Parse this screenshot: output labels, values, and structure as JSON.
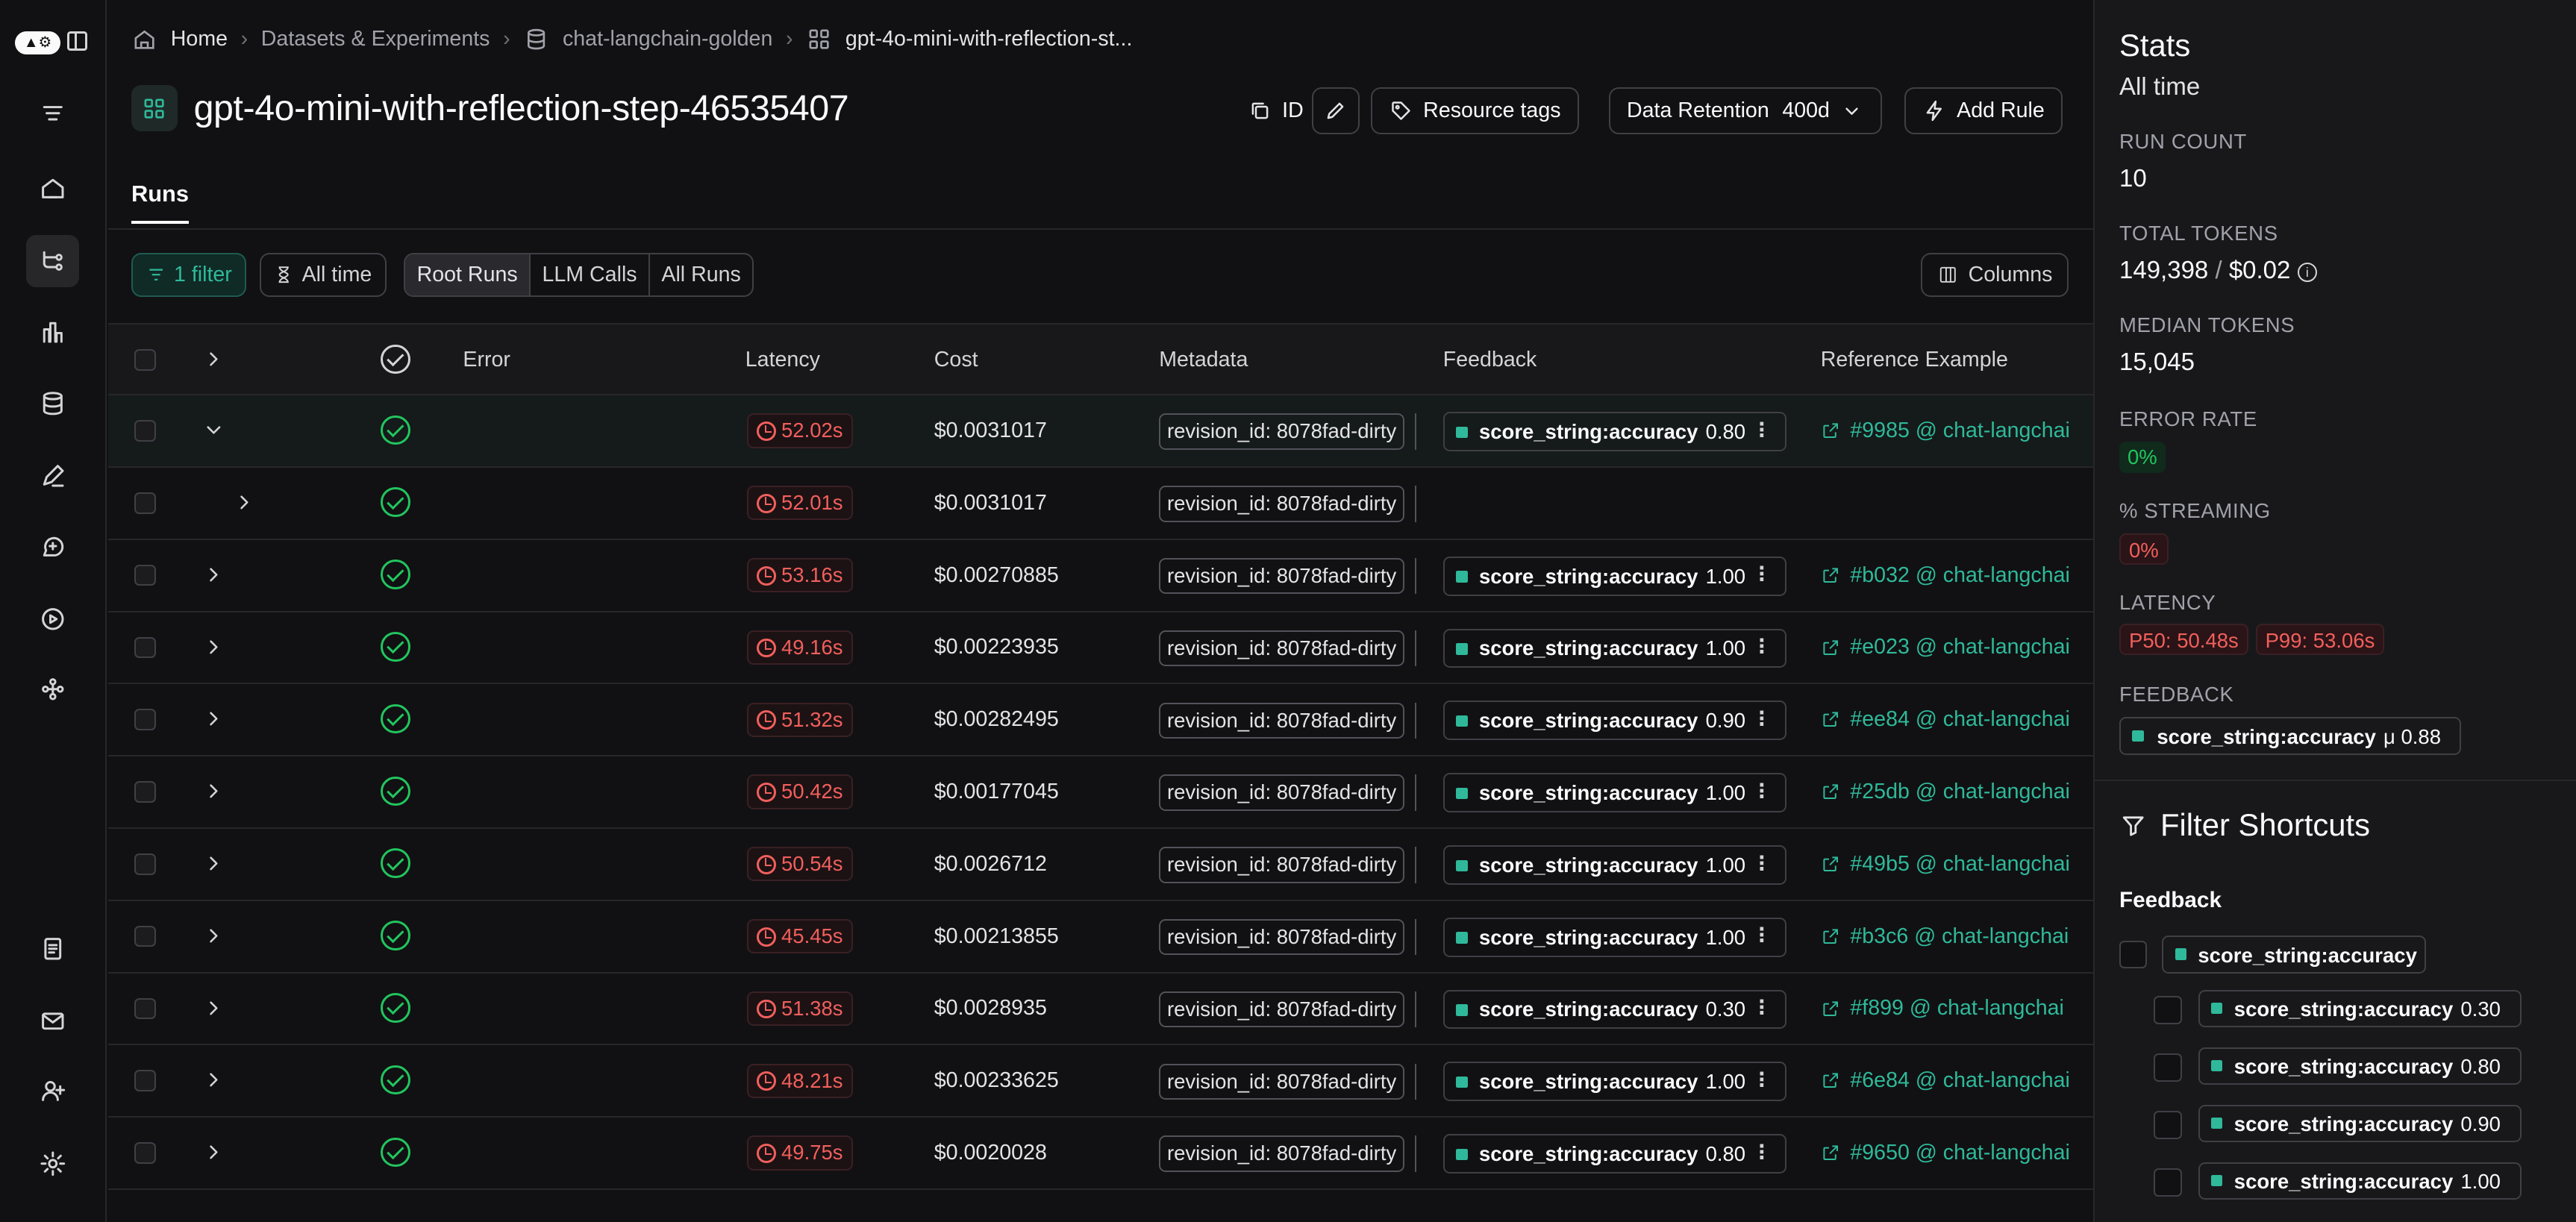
{
  "breadcrumb": {
    "home": "Home",
    "datasets": "Datasets & Experiments",
    "dataset": "chat-langchain-golden",
    "experiment": "gpt-4o-mini-with-reflection-st..."
  },
  "page_title": "gpt-4o-mini-with-reflection-step-46535407",
  "toolbar": {
    "id_label": "ID",
    "resource_tags": "Resource tags",
    "data_retention_label": "Data Retention",
    "data_retention_value": "400d",
    "add_rule": "Add Rule"
  },
  "tabs": {
    "runs": "Runs"
  },
  "filters": {
    "filter_label": "1 filter",
    "time_label": "All time",
    "segments": [
      "Root Runs",
      "LLM Calls",
      "All Runs"
    ],
    "columns_label": "Columns"
  },
  "table": {
    "headers": {
      "error": "Error",
      "latency": "Latency",
      "cost": "Cost",
      "metadata": "Metadata",
      "feedback": "Feedback",
      "reference": "Reference Example"
    },
    "rows": [
      {
        "latency": "52.02s",
        "cost": "$0.0031017",
        "metadata": "revision_id: 8078fad-dirty",
        "fb_key": "score_string:accuracy",
        "fb_val": "0.80",
        "ref": "#9985 @ chat-langchai",
        "expanded": true
      },
      {
        "latency": "52.01s",
        "cost": "$0.0031017",
        "metadata": "revision_id: 8078fad-dirty",
        "fb_key": "",
        "fb_val": "",
        "ref": "",
        "child": true
      },
      {
        "latency": "53.16s",
        "cost": "$0.00270885",
        "metadata": "revision_id: 8078fad-dirty",
        "fb_key": "score_string:accuracy",
        "fb_val": "1.00",
        "ref": "#b032 @ chat-langchai"
      },
      {
        "latency": "49.16s",
        "cost": "$0.00223935",
        "metadata": "revision_id: 8078fad-dirty",
        "fb_key": "score_string:accuracy",
        "fb_val": "1.00",
        "ref": "#e023 @ chat-langchai"
      },
      {
        "latency": "51.32s",
        "cost": "$0.00282495",
        "metadata": "revision_id: 8078fad-dirty",
        "fb_key": "score_string:accuracy",
        "fb_val": "0.90",
        "ref": "#ee84 @ chat-langchai"
      },
      {
        "latency": "50.42s",
        "cost": "$0.00177045",
        "metadata": "revision_id: 8078fad-dirty",
        "fb_key": "score_string:accuracy",
        "fb_val": "1.00",
        "ref": "#25db @ chat-langchai"
      },
      {
        "latency": "50.54s",
        "cost": "$0.0026712",
        "metadata": "revision_id: 8078fad-dirty",
        "fb_key": "score_string:accuracy",
        "fb_val": "1.00",
        "ref": "#49b5 @ chat-langchai"
      },
      {
        "latency": "45.45s",
        "cost": "$0.00213855",
        "metadata": "revision_id: 8078fad-dirty",
        "fb_key": "score_string:accuracy",
        "fb_val": "1.00",
        "ref": "#b3c6 @ chat-langchai"
      },
      {
        "latency": "51.38s",
        "cost": "$0.0028935",
        "metadata": "revision_id: 8078fad-dirty",
        "fb_key": "score_string:accuracy",
        "fb_val": "0.30",
        "ref": "#f899 @ chat-langchai"
      },
      {
        "latency": "48.21s",
        "cost": "$0.00233625",
        "metadata": "revision_id: 8078fad-dirty",
        "fb_key": "score_string:accuracy",
        "fb_val": "1.00",
        "ref": "#6e84 @ chat-langchai"
      },
      {
        "latency": "49.75s",
        "cost": "$0.0020028",
        "metadata": "revision_id: 8078fad-dirty",
        "fb_key": "score_string:accuracy",
        "fb_val": "0.80",
        "ref": "#9650 @ chat-langchai"
      }
    ]
  },
  "stats": {
    "title": "Stats",
    "period": "All time",
    "run_count_label": "RUN COUNT",
    "run_count": "10",
    "total_tokens_label": "TOTAL TOKENS",
    "total_tokens": "149,398",
    "total_cost": "$0.02",
    "median_tokens_label": "MEDIAN TOKENS",
    "median_tokens": "15,045",
    "error_rate_label": "ERROR RATE",
    "error_rate": "0%",
    "streaming_label": "% STREAMING",
    "streaming": "0%",
    "latency_label": "LATENCY",
    "p50": "P50: 50.48s",
    "p99": "P99: 53.06s",
    "feedback_label": "FEEDBACK",
    "feedback_key": "score_string:accuracy",
    "feedback_mean": "μ 0.88"
  },
  "filter_shortcuts": {
    "title": "Filter Shortcuts",
    "feedback_label": "Feedback",
    "root": "score_string:accuracy",
    "values": [
      "0.30",
      "0.80",
      "0.90",
      "1.00"
    ]
  },
  "colors": {
    "accent": "#2fb99a",
    "error": "#f25f5c",
    "success": "#22c55e"
  }
}
